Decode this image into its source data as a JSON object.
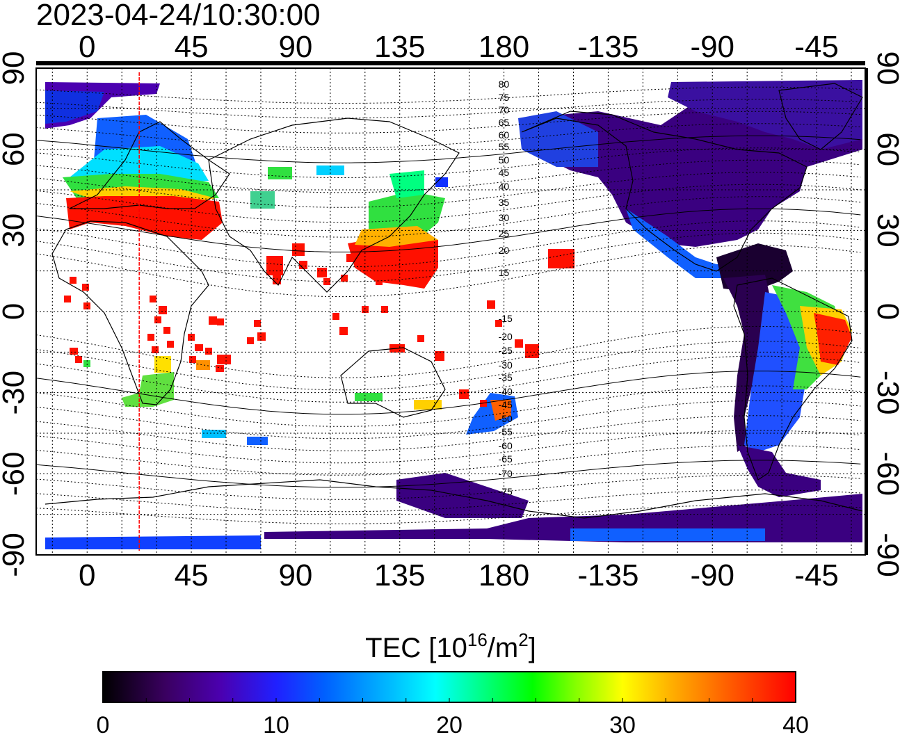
{
  "timestamp": "2023-04-24/10:30:00",
  "top_lon_labels": [
    "0",
    "45",
    "90",
    "135",
    "180",
    "-135",
    "-90",
    "-45"
  ],
  "bottom_lon_labels": [
    "0",
    "45",
    "90",
    "135",
    "180",
    "-135",
    "-90",
    "-45"
  ],
  "left_lat_labels": [
    "90",
    "60",
    "30",
    "0",
    "-30",
    "-60",
    "-90"
  ],
  "right_lat_labels": [
    "90",
    "60",
    "30",
    "0",
    "-30",
    "-60",
    "-90"
  ],
  "contour_labels": [
    "80",
    "75",
    "70",
    "65",
    "60",
    "55",
    "50",
    "45",
    "40",
    "35",
    "30",
    "25",
    "20",
    "15",
    "-15",
    "-20",
    "-25",
    "-30",
    "-35",
    "-40",
    "-45",
    "-50",
    "-55",
    "-60",
    "-65",
    "-70",
    "-75"
  ],
  "colorbar": {
    "label_prefix": "TEC  [10",
    "label_sup1": "16",
    "label_mid": "/m",
    "label_sup2": "2",
    "label_suffix": "]",
    "ticks": [
      "0",
      "10",
      "20",
      "30",
      "40"
    ],
    "min": 0,
    "max": 40,
    "colors": [
      "#000000",
      "#3a0060",
      "#4b00b0",
      "#2020ff",
      "#0060ff",
      "#00c0ff",
      "#00ffff",
      "#00ff80",
      "#00ff00",
      "#80ff00",
      "#ffff00",
      "#ffb000",
      "#ff6000",
      "#ff0000"
    ]
  },
  "map": {
    "lon_range": [
      -22,
      336
    ],
    "lat_range": [
      -90,
      90
    ],
    "marker_longitude": 22.5,
    "marker_color": "#ff0000"
  }
}
